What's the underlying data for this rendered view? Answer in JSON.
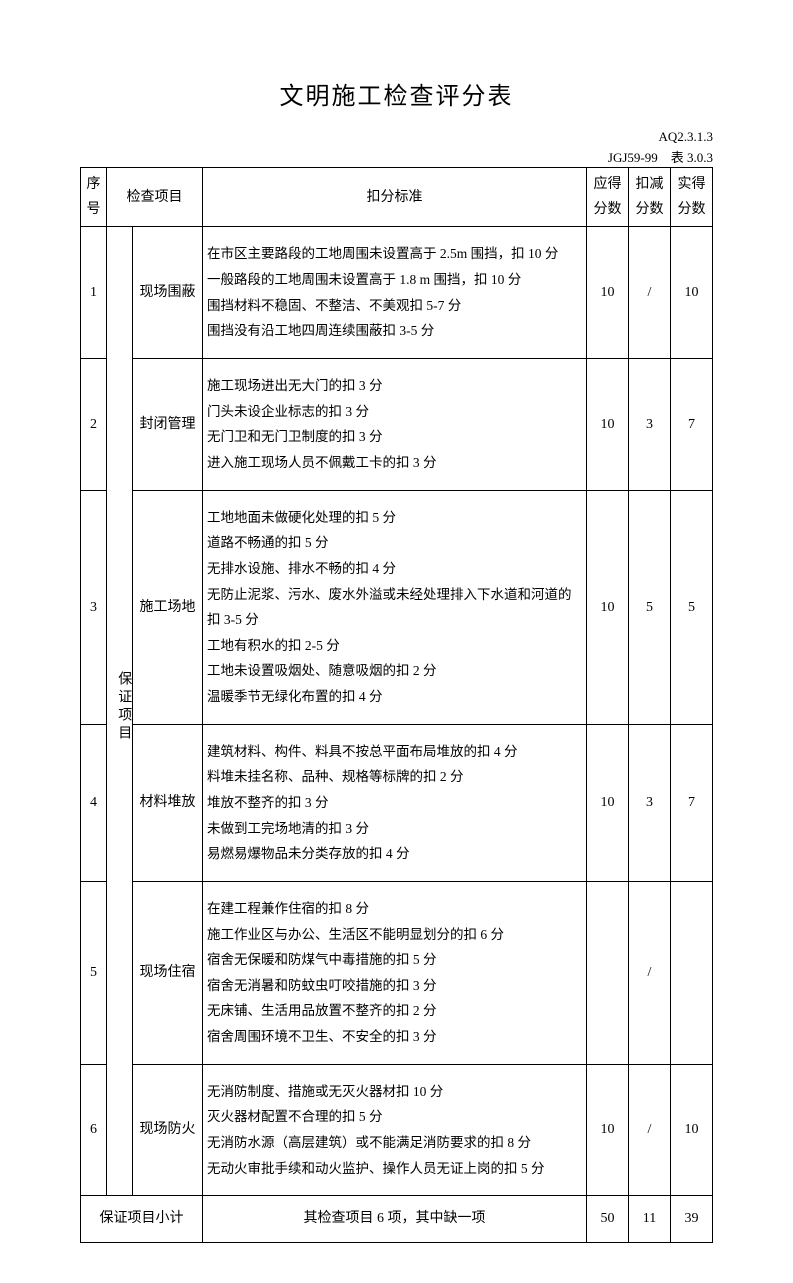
{
  "title": "文明施工检查评分表",
  "doc_code": "AQ2.3.1.3",
  "standard_code": "JGJ59-99　表 3.0.3",
  "columns": {
    "seq": "序号",
    "item": "检查项目",
    "criteria": "扣分标准",
    "should": "应得分数",
    "deduct": "扣减分数",
    "actual": "实得分数"
  },
  "category_label": "保证项目",
  "rows": [
    {
      "seq": "1",
      "item": "现场围蔽",
      "criteria": "在市区主要路段的工地周围未设置高于 2.5m 围挡，扣 10 分\n一般路段的工地周围未设置高于 1.8 m 围挡，扣 10 分\n围挡材料不稳固、不整洁、不美观扣 5-7 分\n围挡没有沿工地四周连续围蔽扣 3-5 分",
      "should": "10",
      "deduct": "/",
      "actual": "10"
    },
    {
      "seq": "2",
      "item": "封闭管理",
      "criteria": "施工现场进出无大门的扣 3 分\n门头未设企业标志的扣 3 分\n无门卫和无门卫制度的扣 3 分\n进入施工现场人员不佩戴工卡的扣 3 分",
      "should": "10",
      "deduct": "3",
      "actual": "7"
    },
    {
      "seq": "3",
      "item": "施工场地",
      "criteria": "工地地面未做硬化处理的扣 5 分\n道路不畅通的扣 5 分\n无排水设施、排水不畅的扣 4 分\n无防止泥浆、污水、废水外溢或未经处理排入下水道和河道的扣 3-5 分\n工地有积水的扣 2-5 分\n工地未设置吸烟处、随意吸烟的扣 2 分\n温暖季节无绿化布置的扣 4 分",
      "should": "10",
      "deduct": "5",
      "actual": "5"
    },
    {
      "seq": "4",
      "item": "材料堆放",
      "criteria": "建筑材料、构件、料具不按总平面布局堆放的扣 4 分\n料堆未挂名称、品种、规格等标牌的扣 2 分\n堆放不整齐的扣 3 分\n未做到工完场地清的扣 3 分\n易燃易爆物品未分类存放的扣 4 分",
      "should": "10",
      "deduct": "3",
      "actual": "7"
    },
    {
      "seq": "5",
      "item": "现场住宿",
      "criteria": "在建工程兼作住宿的扣 8 分\n施工作业区与办公、生活区不能明显划分的扣 6 分\n宿舍无保暖和防煤气中毒措施的扣 5 分\n宿舍无消暑和防蚊虫叮咬措施的扣 3 分\n无床铺、生活用品放置不整齐的扣 2 分\n宿舍周围环境不卫生、不安全的扣 3 分",
      "should": "",
      "deduct": "/",
      "actual": ""
    },
    {
      "seq": "6",
      "item": "现场防火",
      "criteria": "无消防制度、措施或无灭火器材扣 10 分\n灭火器材配置不合理的扣 5 分\n无消防水源（高层建筑）或不能满足消防要求的扣 8 分\n无动火审批手续和动火监护、操作人员无证上岗的扣 5 分",
      "should": "10",
      "deduct": "/",
      "actual": "10"
    }
  ],
  "subtotal": {
    "label": "保证项目小计",
    "note": "其检查项目 6 项，其中缺一项",
    "should": "50",
    "deduct": "11",
    "actual": "39"
  }
}
